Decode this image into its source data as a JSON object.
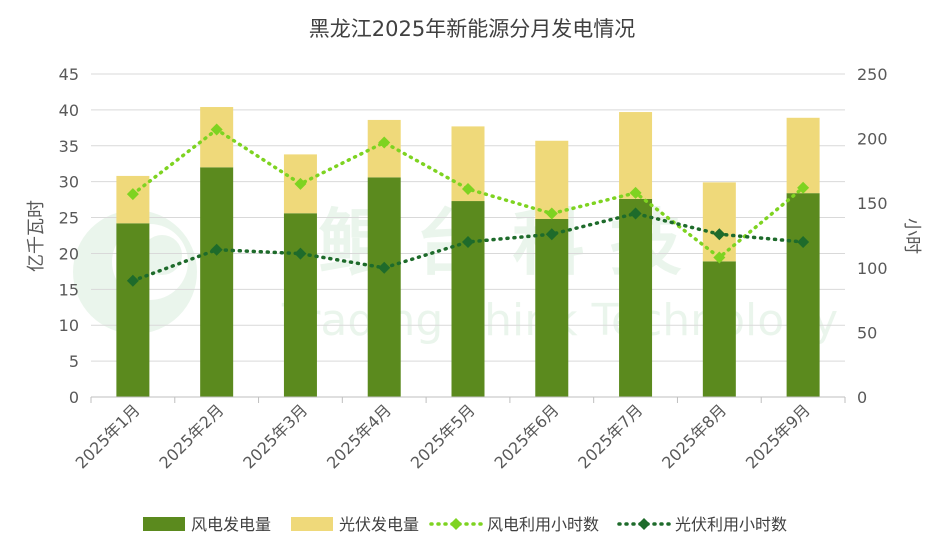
{
  "chart_data": {
    "type": "bar",
    "title": "黑龙江2025年新能源分月发电情况",
    "categories": [
      "2025年1月",
      "2025年2月",
      "2025年3月",
      "2025年4月",
      "2025年5月",
      "2025年6月",
      "2025年7月",
      "2025年8月",
      "2025年9月"
    ],
    "y_left": {
      "label": "亿千瓦时",
      "range": [
        0,
        45
      ],
      "ticks": [
        "0",
        "5",
        "10",
        "15",
        "20",
        "25",
        "30",
        "35",
        "40",
        "45"
      ]
    },
    "y_right": {
      "label": "小时",
      "range": [
        0,
        250
      ],
      "ticks": [
        "0",
        "50",
        "100",
        "150",
        "200",
        "250"
      ]
    },
    "stacked_bars": [
      {
        "name": "风电发电量",
        "color": "#5b8a1e",
        "values": [
          24.2,
          32.0,
          25.6,
          30.6,
          27.3,
          24.8,
          27.6,
          18.9,
          28.4
        ]
      },
      {
        "name": "光伏发电量",
        "color": "#efd97a",
        "values": [
          6.6,
          8.4,
          8.2,
          8.0,
          10.4,
          10.9,
          12.1,
          11.0,
          10.5
        ]
      }
    ],
    "lines": [
      {
        "name": "风电利用小时数",
        "color": "#7ed321",
        "axis": "right",
        "values": [
          157,
          207,
          165,
          197,
          161,
          142,
          158,
          108,
          162
        ]
      },
      {
        "name": "光伏利用小时数",
        "color": "#1e6b2b",
        "axis": "right",
        "values": [
          90,
          114,
          111,
          100,
          120,
          126,
          142,
          126,
          120
        ]
      }
    ],
    "legend_position": "bottom",
    "grid": true
  },
  "watermark": {
    "cn": "鲲 台 科 技",
    "en": "Trading Think Technology"
  }
}
